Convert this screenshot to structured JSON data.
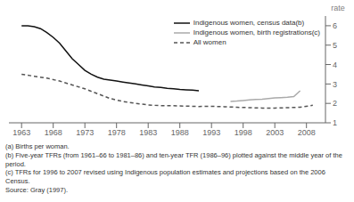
{
  "chart_data": {
    "type": "line",
    "ylabel": "rate",
    "xlim": [
      1961,
      2011
    ],
    "ylim": [
      1,
      6.5
    ],
    "xticks": [
      1963,
      1968,
      1973,
      1978,
      1983,
      1988,
      1993,
      1998,
      2003,
      2008
    ],
    "yticks": [
      1,
      2,
      3,
      4,
      5,
      6
    ],
    "legend": "upper right",
    "series": [
      {
        "name": "Indigenous women, census data(b)",
        "color": "#111111",
        "line_style": "solid",
        "x": [
          1963,
          1964,
          1965,
          1966,
          1967,
          1968,
          1969,
          1970,
          1971,
          1972,
          1973,
          1974,
          1975,
          1976,
          1977,
          1978,
          1979,
          1980,
          1981,
          1982,
          1983,
          1984,
          1985,
          1986,
          1987,
          1988,
          1989,
          1990,
          1991
        ],
        "values": [
          6.0,
          6.0,
          5.95,
          5.85,
          5.65,
          5.4,
          5.1,
          4.7,
          4.3,
          4.0,
          3.7,
          3.5,
          3.35,
          3.25,
          3.2,
          3.15,
          3.1,
          3.05,
          3.0,
          2.95,
          2.9,
          2.85,
          2.82,
          2.78,
          2.75,
          2.72,
          2.7,
          2.68,
          2.65
        ]
      },
      {
        "name": "Indigenous women, birth registrations(c)",
        "color": "#aaaaaa",
        "line_style": "solid",
        "x": [
          1996,
          1997,
          1998,
          1999,
          2000,
          2001,
          2002,
          2003,
          2004,
          2005,
          2006,
          2007
        ],
        "values": [
          2.1,
          2.12,
          2.15,
          2.18,
          2.2,
          2.22,
          2.25,
          2.28,
          2.3,
          2.32,
          2.35,
          2.65
        ]
      },
      {
        "name": "All women",
        "color": "#555555",
        "line_style": "dashed",
        "x": [
          1963,
          1965,
          1967,
          1969,
          1971,
          1973,
          1975,
          1977,
          1979,
          1981,
          1983,
          1985,
          1987,
          1989,
          1991,
          1993,
          1995,
          1997,
          1999,
          2001,
          2003,
          2005,
          2007,
          2009
        ],
        "values": [
          3.5,
          3.4,
          3.3,
          3.15,
          2.95,
          2.75,
          2.5,
          2.25,
          2.1,
          2.0,
          1.92,
          1.88,
          1.88,
          1.86,
          1.84,
          1.85,
          1.83,
          1.8,
          1.78,
          1.76,
          1.76,
          1.78,
          1.8,
          1.9
        ]
      }
    ],
    "annotations": [
      "(a) Births per woman.",
      "(b) Five-year TFRs (from 1961–66 to 1981–86) and ten-year TFR (1986–96) plotted against the middle year of the period.",
      "(c) TFRs for 1996 to 2007 revised using Indigenous population estimates and projections based on the 2006 Census.",
      "Source: Gray (1997)."
    ]
  }
}
